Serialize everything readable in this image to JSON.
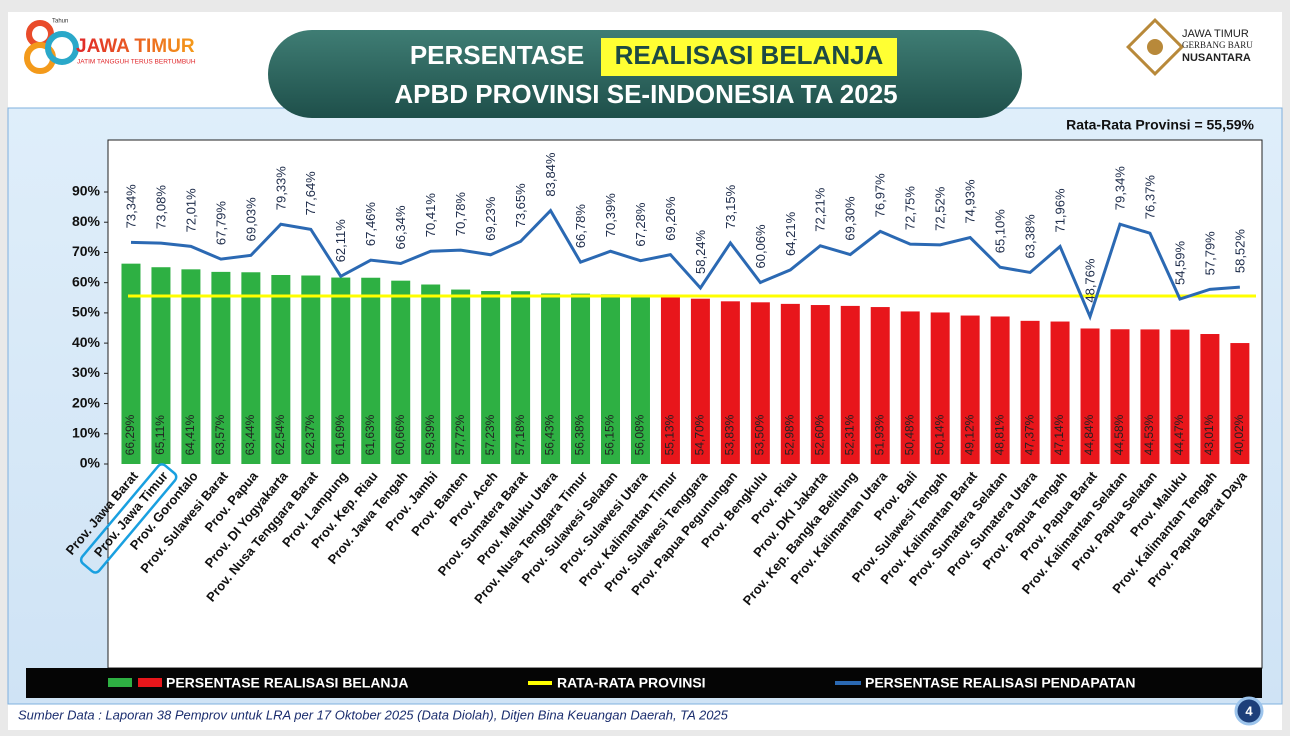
{
  "header": {
    "logo_left": {
      "year_label": "Tahun",
      "number": "80",
      "name": "JAWA TIMUR",
      "tagline": "JATIM TANGGUH TERUS BERTUMBUH"
    },
    "logo_right": {
      "line1": "JAWA TIMUR",
      "line2": "GERBANG BARU",
      "line3": "NUSANTARA"
    },
    "page_number": 4
  },
  "chart_data": {
    "type": "bar",
    "title": {
      "prefix": "PERSENTASE",
      "highlight": "REALISASI BELANJA",
      "line2": "APBD PROVINSI SE-INDONESIA TA 2025"
    },
    "annotation": "Rata-Rata Provinsi = 55,59%",
    "categories": [
      "Prov. Jawa Barat",
      "Prov. Jawa Timur",
      "Prov. Gorontalo",
      "Prov. Sulawesi Barat",
      "Prov. Papua",
      "Prov. DI Yogyakarta",
      "Prov. Nusa Tenggara Barat",
      "Prov. Lampung",
      "Prov. Kep. Riau",
      "Prov. Jawa Tengah",
      "Prov. Jambi",
      "Prov. Banten",
      "Prov. Aceh",
      "Prov. Sumatera Barat",
      "Prov. Maluku Utara",
      "Prov. Nusa Tenggara Timur",
      "Prov. Sulawesi Selatan",
      "Prov. Sulawesi Utara",
      "Prov. Kalimantan Timur",
      "Prov. Sulawesi Tenggara",
      "Prov. Papua Pegunungan",
      "Prov. Bengkulu",
      "Prov. Riau",
      "Prov. DKI Jakarta",
      "Prov. Kep. Bangka Belitung",
      "Prov. Kalimantan Utara",
      "Prov. Bali",
      "Prov. Sulawesi Tengah",
      "Prov. Kalimantan Barat",
      "Prov. Sumatera Selatan",
      "Prov. Sumatera Utara",
      "Prov. Papua Tengah",
      "Prov. Papua Barat",
      "Prov. Kalimantan Selatan",
      "Prov. Papua Selatan",
      "Prov. Maluku",
      "Prov. Kalimantan Tengah",
      "Prov. Papua Barat Daya"
    ],
    "series": [
      {
        "name": "PERSENTASE REALISASI BELANJA",
        "type": "bar",
        "color_above": "#2eb043",
        "color_below": "#e8161b",
        "values": [
          66.29,
          65.11,
          64.41,
          63.57,
          63.44,
          62.54,
          62.37,
          61.69,
          61.63,
          60.66,
          59.39,
          57.72,
          57.23,
          57.18,
          56.43,
          56.38,
          56.15,
          56.08,
          55.13,
          54.7,
          53.83,
          53.5,
          52.98,
          52.6,
          52.31,
          51.93,
          50.48,
          50.14,
          49.12,
          48.81,
          47.37,
          47.14,
          44.84,
          44.58,
          44.53,
          44.47,
          43.01,
          40.02
        ],
        "value_labels": [
          "66,29%",
          "65,11%",
          "64,41%",
          "63,57%",
          "63,44%",
          "62,54%",
          "62,37%",
          "61,69%",
          "61,63%",
          "60,66%",
          "59,39%",
          "57,72%",
          "57,23%",
          "57,18%",
          "56,43%",
          "56,38%",
          "56,15%",
          "56,08%",
          "55,13%",
          "54,70%",
          "53,83%",
          "53,50%",
          "52,98%",
          "52,60%",
          "52,31%",
          "51,93%",
          "50,48%",
          "50,14%",
          "49,12%",
          "48,81%",
          "47,37%",
          "47,14%",
          "44,84%",
          "44,58%",
          "44,53%",
          "44,47%",
          "43,01%",
          "40,02%"
        ]
      },
      {
        "name": "RATA-RATA PROVINSI",
        "type": "hline",
        "color": "#ffff00",
        "value": 55.59
      },
      {
        "name": "PERSENTASE REALISASI PENDAPATAN",
        "type": "line",
        "color": "#2b69b3",
        "values": [
          73.34,
          73.08,
          72.01,
          67.79,
          69.03,
          79.33,
          77.64,
          62.11,
          67.46,
          66.34,
          70.41,
          70.78,
          69.23,
          73.65,
          83.84,
          66.78,
          70.39,
          67.28,
          69.26,
          58.24,
          73.15,
          60.06,
          64.21,
          72.21,
          69.3,
          76.97,
          72.75,
          72.52,
          74.93,
          65.1,
          63.38,
          71.96,
          48.76,
          79.34,
          76.37,
          54.59,
          57.79,
          58.52
        ],
        "value_labels": [
          "73,34%",
          "73,08%",
          "72,01%",
          "67,79%",
          "69,03%",
          "79,33%",
          "77,64%",
          "62,11%",
          "67,46%",
          "66,34%",
          "70,41%",
          "70,78%",
          "69,23%",
          "73,65%",
          "83,84%",
          "66,78%",
          "70,39%",
          "67,28%",
          "69,26%",
          "58,24%",
          "73,15%",
          "60,06%",
          "64,21%",
          "72,21%",
          "69,30%",
          "76,97%",
          "72,75%",
          "72,52%",
          "74,93%",
          "65,10%",
          "63,38%",
          "71,96%",
          "48,76%",
          "79,34%",
          "76,37%",
          "54,59%",
          "57,79%",
          "58,52%"
        ]
      }
    ],
    "ylim": [
      0,
      90
    ],
    "yticks": [
      {
        "value": 0,
        "label": "0%"
      },
      {
        "value": 10,
        "label": "10%"
      },
      {
        "value": 20,
        "label": "20%"
      },
      {
        "value": 30,
        "label": "30%"
      },
      {
        "value": 40,
        "label": "40%"
      },
      {
        "value": 50,
        "label": "50%"
      },
      {
        "value": 60,
        "label": "60%"
      },
      {
        "value": 70,
        "label": "70%"
      },
      {
        "value": 80,
        "label": "80%"
      },
      {
        "value": 90,
        "label": "90%"
      }
    ],
    "highlight_category": 1,
    "source": "Sumber Data : Laporan 38 Pemprov untuk LRA per 17 Oktober 2025 (Data Diolah), Ditjen Bina Keuangan Daerah, TA 2025"
  }
}
